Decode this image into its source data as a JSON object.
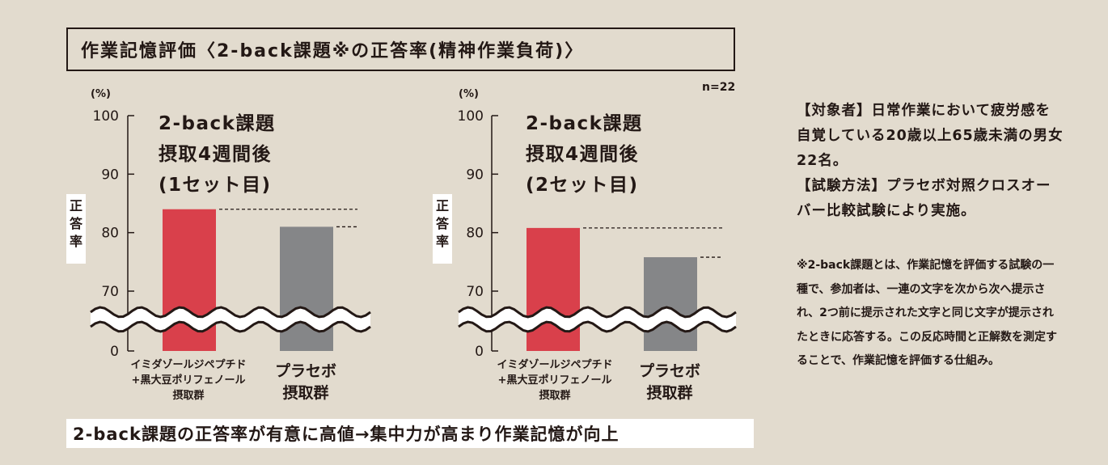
{
  "title": "作業記憶評価〈2-back課題※の正答率(精神作業負荷)〉",
  "n_label": "n=22",
  "bottom_banner": "2-back課題の正答率が有意に高値→集中力が高まり作業記憶が向上",
  "side": {
    "subjects": "【対象者】日常作業において疲労感を自覚している20歳以上65歳未満の男女22名。",
    "method": "【試験方法】プラセボ対照クロスオーバー比較試験により実施。",
    "note": "※2-back課題とは、作業記憶を評価する試験の一種で、参加者は、一連の文字を次から次へ提示され、2つ前に提示された文字と同じ文字が提示されたときに応答する。この反応時間と正解数を測定することで、作業記憶を評価する仕組み。"
  },
  "colors": {
    "test": "#d9404b",
    "placebo": "#858688",
    "background": "#e2dbce"
  },
  "chart_data": [
    {
      "type": "bar",
      "title_lines": [
        "2-back課題",
        "摂取4週間後",
        "(1セット目)"
      ],
      "ylabel": "正答率",
      "yunit": "(%)",
      "yticks": [
        "100",
        "90",
        "80",
        "70",
        "0"
      ],
      "axis_break": true,
      "categories": [
        [
          "イミダゾールジペプチド",
          "+黒大豆ポリフェノール",
          "摂取群"
        ],
        [
          "プラセボ",
          "摂取群"
        ]
      ],
      "values": [
        84,
        81
      ],
      "ylim": [
        0,
        100
      ]
    },
    {
      "type": "bar",
      "title_lines": [
        "2-back課題",
        "摂取4週間後",
        "(2セット目)"
      ],
      "ylabel": "正答率",
      "yunit": "(%)",
      "yticks": [
        "100",
        "90",
        "80",
        "70",
        "0"
      ],
      "axis_break": true,
      "categories": [
        [
          "イミダゾールジペプチド",
          "+黒大豆ポリフェノール",
          "摂取群"
        ],
        [
          "プラセボ",
          "摂取群"
        ]
      ],
      "values": [
        80.8,
        75.8
      ],
      "ylim": [
        0,
        100
      ]
    }
  ]
}
